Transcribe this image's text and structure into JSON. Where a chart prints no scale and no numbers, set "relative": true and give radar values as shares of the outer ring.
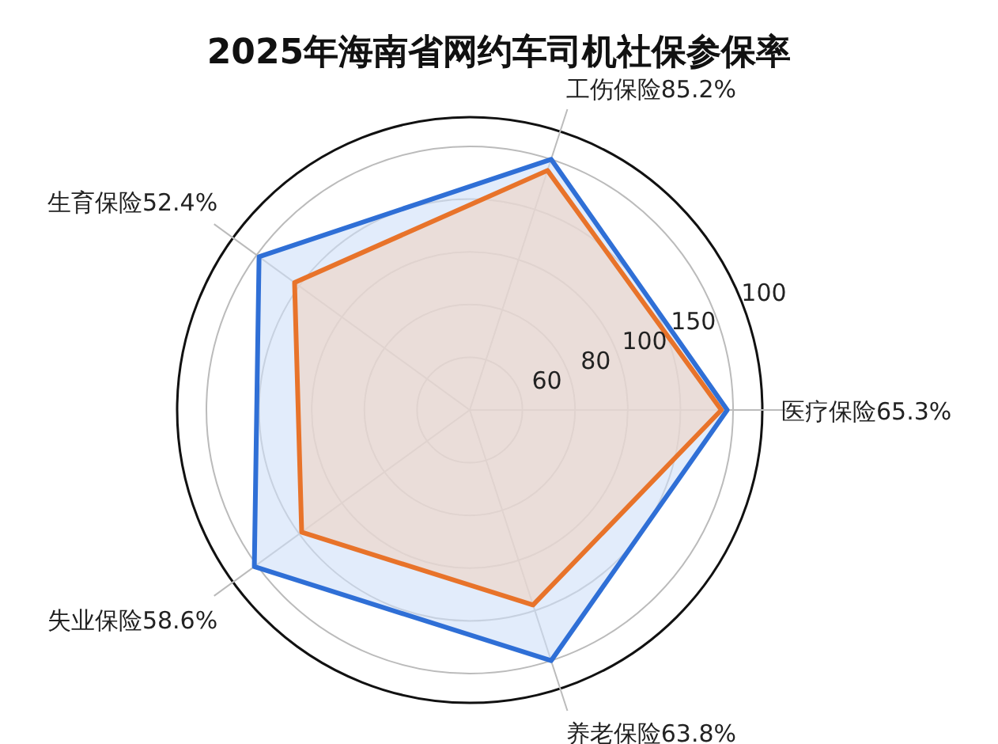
{
  "chart_data": {
    "type": "radar",
    "title": "2025年海南省网约车司机社保参保率",
    "relative": true,
    "categories": [
      "工伤保险85.2%",
      "医疗保险65.3%",
      "养老保险63.8%",
      "失业保险58.6%",
      "生育保险52.4%"
    ],
    "series": [
      {
        "color": "#2f6fd6",
        "values": [
          0.9,
          0.88,
          0.9,
          0.91,
          0.89
        ]
      },
      {
        "color": "#e8732a",
        "values": [
          0.86,
          0.86,
          0.7,
          0.71,
          0.74
        ]
      }
    ],
    "annotations": [
      "60",
      "80",
      "100",
      "150",
      "100"
    ]
  }
}
